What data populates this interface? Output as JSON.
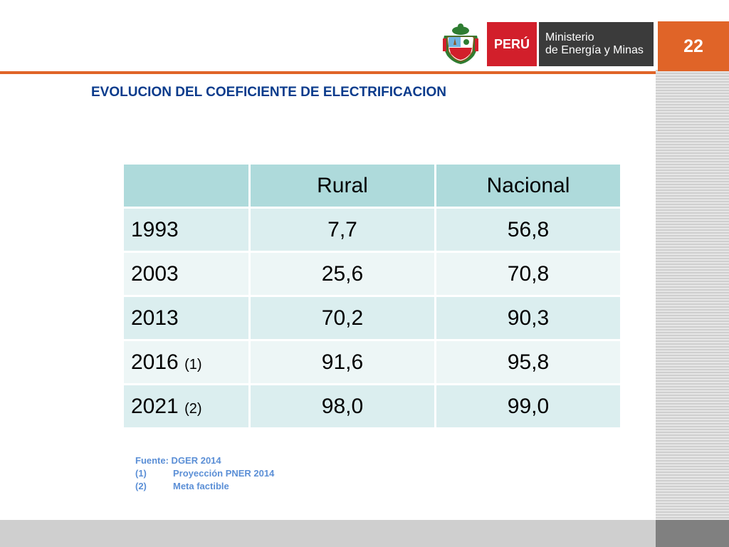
{
  "header": {
    "slide_number": "22",
    "peru_label": "PERÚ",
    "ministry_line1": "Ministerio",
    "ministry_line2": "de Energía y Minas"
  },
  "title": "EVOLUCION DEL COEFICIENTE DE ELECTRIFICACION",
  "table": {
    "headers": [
      "",
      "Rural",
      "Nacional"
    ],
    "rows": [
      {
        "year": "1993",
        "note": "",
        "rural": "7,7",
        "nacional": "56,8"
      },
      {
        "year": "2003",
        "note": "",
        "rural": "25,6",
        "nacional": "70,8"
      },
      {
        "year": "2013",
        "note": "",
        "rural": "70,2",
        "nacional": "90,3"
      },
      {
        "year": "2016",
        "note": "(1)",
        "rural": "91,6",
        "nacional": "95,8"
      },
      {
        "year": "2021",
        "note": "(2)",
        "rural": "98,0",
        "nacional": "99,0"
      }
    ]
  },
  "footnotes": {
    "source": "Fuente: DGER 2014",
    "items": [
      {
        "num": "(1)",
        "text": "Proyección PNER 2014"
      },
      {
        "num": "(2)",
        "text": "Meta factible"
      }
    ]
  },
  "colors": {
    "accent_orange": "#e06428",
    "title_blue": "#0a3b8c",
    "peru_red": "#d21f2b",
    "ministry_gray": "#3b3b3b",
    "table_header": "#aedadb",
    "table_row": "#dbeeef",
    "table_row_alt": "#edf6f6",
    "footnote_blue": "#5b8fd6"
  }
}
